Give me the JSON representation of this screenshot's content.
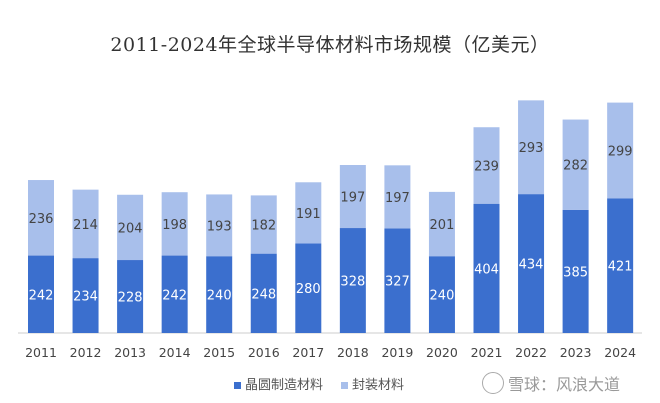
{
  "chart_data": {
    "type": "bar",
    "stacked": true,
    "title": "2011-2024年全球半导体材料市场规模（亿美元）",
    "categories": [
      "2011",
      "2012",
      "2013",
      "2014",
      "2015",
      "2016",
      "2017",
      "2018",
      "2019",
      "2020",
      "2021",
      "2022",
      "2023",
      "2024"
    ],
    "series": [
      {
        "name": "晶圆制造材料",
        "color": "#3b6fce",
        "values": [
          242,
          234,
          228,
          242,
          240,
          248,
          280,
          328,
          327,
          240,
          404,
          434,
          385,
          421
        ]
      },
      {
        "name": "封装材料",
        "color": "#a8bfeb",
        "values": [
          236,
          214,
          204,
          198,
          193,
          182,
          191,
          197,
          197,
          201,
          239,
          293,
          282,
          299
        ]
      }
    ],
    "legend_position": "bottom",
    "grid": false
  },
  "watermark": "雪球：风浪大道"
}
